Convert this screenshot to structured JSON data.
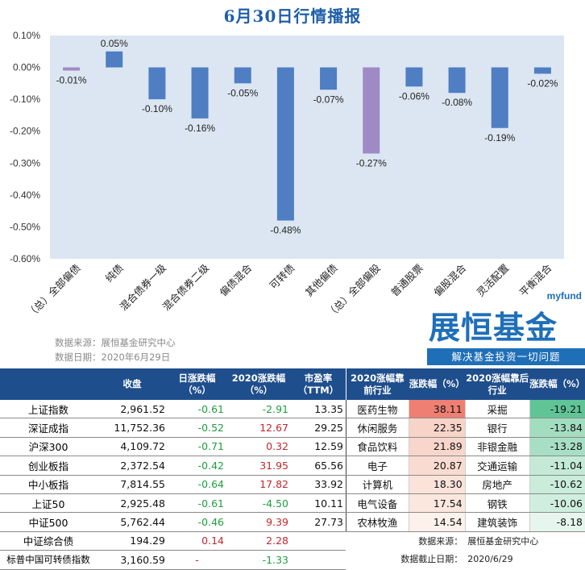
{
  "title": "6月30日行情播报",
  "chart_data": {
    "type": "bar",
    "categories": [
      "（总）全部偏债",
      "纯债",
      "混合债券一级",
      "混合债券二级",
      "偏债混合",
      "可转债",
      "其他偏债",
      "（总）全部偏股",
      "普通股票",
      "偏股混合",
      "灵活配置",
      "平衡混合"
    ],
    "values": [
      -0.01,
      0.05,
      -0.1,
      -0.16,
      -0.05,
      -0.48,
      -0.07,
      -0.27,
      -0.06,
      -0.08,
      -0.19,
      -0.02
    ],
    "value_labels": [
      "-0.01%",
      "0.05%",
      "-0.10%",
      "-0.16%",
      "-0.05%",
      "-0.48%",
      "-0.07%",
      "-0.27%",
      "-0.06%",
      "-0.08%",
      "-0.19%",
      "-0.02%"
    ],
    "highlight": [
      0,
      7
    ],
    "ylim": [
      -0.6,
      0.1
    ],
    "yticks": [
      0.1,
      0.0,
      -0.1,
      -0.2,
      -0.3,
      -0.4,
      -0.5,
      -0.6
    ],
    "ytick_labels": [
      "0.10%",
      "0.00%",
      "-0.10%",
      "-0.20%",
      "-0.30%",
      "-0.40%",
      "-0.50%",
      "-0.60%"
    ],
    "colors": {
      "bar": "#4f7ec2",
      "highlight": "#a08ac6",
      "plot_bg": "#dce6f2"
    }
  },
  "source": {
    "line1": "数据来源：展恒基金研究中心",
    "line2": "数据日期：2020年6月29日"
  },
  "logo": {
    "small": "myfund",
    "big": "展恒基金",
    "tagline": "解决基金投资一切问题"
  },
  "index_table": {
    "headers": [
      "",
      "收盘",
      "日涨跌幅（%）",
      "2020涨跌幅（%）",
      "市盈率（TTM）"
    ],
    "rows": [
      {
        "name": "上证指数",
        "close": "2,961.52",
        "day": "-0.61",
        "ytd": "-2.91",
        "pe": "13.35"
      },
      {
        "name": "深证成指",
        "close": "11,752.36",
        "day": "-0.52",
        "ytd": "12.67",
        "pe": "29.25"
      },
      {
        "name": "沪深300",
        "close": "4,109.72",
        "day": "-0.71",
        "ytd": "0.32",
        "pe": "12.59"
      },
      {
        "name": "创业板指",
        "close": "2,372.54",
        "day": "-0.42",
        "ytd": "31.95",
        "pe": "65.56"
      },
      {
        "name": "中小板指",
        "close": "7,814.55",
        "day": "-0.64",
        "ytd": "17.82",
        "pe": "33.92"
      },
      {
        "name": "上证50",
        "close": "2,925.48",
        "day": "-0.61",
        "ytd": "-4.50",
        "pe": "10.11"
      },
      {
        "name": "中证500",
        "close": "5,762.44",
        "day": "-0.46",
        "ytd": "9.39",
        "pe": "27.73"
      },
      {
        "name": "中证综合债",
        "close": "194.29",
        "day": "0.14",
        "ytd": "2.28",
        "pe": ""
      },
      {
        "name": "标普中国可转债指数",
        "close": "3,160.59",
        "day": "-",
        "ytd": "-1.33",
        "pe": ""
      }
    ]
  },
  "industry_table": {
    "headers": [
      "2020涨幅靠前行业",
      "涨跌幅（%）",
      "2020涨幅靠后行业",
      "涨跌幅（%）"
    ],
    "rows": [
      {
        "top": "医药生物",
        "top_val": "38.11",
        "top_color": "#ef7f73",
        "bot": "采掘",
        "bot_val": "-19.21",
        "bot_color": "#5fc597"
      },
      {
        "top": "休闲服务",
        "top_val": "22.35",
        "top_color": "#f8d3c8",
        "bot": "银行",
        "bot_val": "-13.84",
        "bot_color": "#a3ddc0"
      },
      {
        "top": "食品饮料",
        "top_val": "21.89",
        "top_color": "#f9d6cc",
        "bot": "非银金融",
        "bot_val": "-13.28",
        "bot_color": "#a8dfc4"
      },
      {
        "top": "电子",
        "top_val": "20.87",
        "top_color": "#fadbd1",
        "bot": "交通运输",
        "bot_val": "-11.04",
        "bot_color": "#c4ead7"
      },
      {
        "top": "计算机",
        "top_val": "18.30",
        "top_color": "#fbe3da",
        "bot": "房地产",
        "bot_val": "-10.62",
        "bot_color": "#c9ecdb"
      },
      {
        "top": "电气设备",
        "top_val": "17.54",
        "top_color": "#fce7df",
        "bot": "钢铁",
        "bot_val": "-10.06",
        "bot_color": "#cfeee0"
      },
      {
        "top": "农林牧渔",
        "top_val": "14.54",
        "top_color": "#fdf1eb",
        "bot": "建筑装饰",
        "bot_val": "-8.18",
        "bot_color": "#e6f6ee"
      }
    ],
    "footer": {
      "src_label": "数据来源：",
      "src_value": "展恒基金研究中心",
      "date_label": "数据截止日期：",
      "date_value": "2020/6/29"
    }
  }
}
